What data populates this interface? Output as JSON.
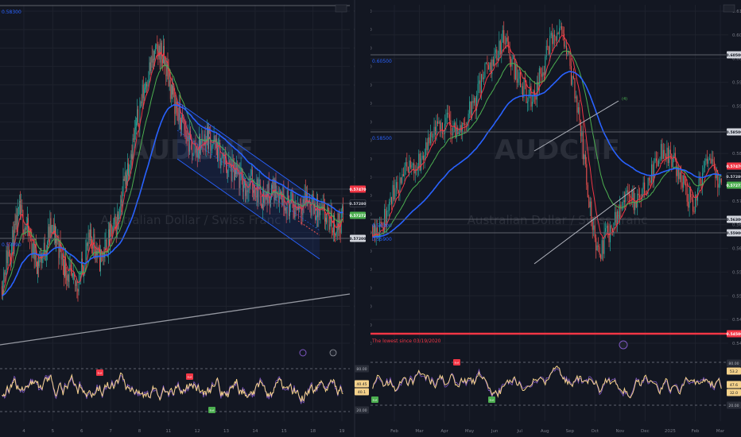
{
  "charts": [
    {
      "instrument": "AUDCHF",
      "watermark": "AUDCHF",
      "watermark_sub": "Australian Dollar / Swiss Franc",
      "top_level_label": "0.58300",
      "lower_level_label": "0.57890",
      "price_labels": [
        {
          "text": "0.57470",
          "color": "#f23645"
        },
        {
          "text": "0.57280",
          "color": "#131722"
        },
        {
          "text": "0.57272",
          "color": "#4caf50"
        },
        {
          "text": "0.57200",
          "color": "#d1d4dc"
        }
      ],
      "y_ticks": [
        "0.58400",
        "0.58300",
        "0.58200",
        "0.58100",
        "0.58000",
        "0.57900",
        "0.57800",
        "0.57700",
        "0.57600",
        "0.57500",
        "0.57400",
        "0.57300",
        "0.57200",
        "0.57100",
        "0.57000",
        "0.56900",
        "0.56800",
        "0.56700",
        "0.56600"
      ],
      "x_ticks": [
        "4",
        "5",
        "6",
        "7",
        "8",
        "11",
        "12",
        "13",
        "14",
        "15",
        "18",
        "19"
      ],
      "osc_labels": [
        "80.00",
        "40.45",
        "40.1",
        "20.00"
      ],
      "osc_markers": [
        {
          "text": "Bull",
          "color": "#f23645"
        },
        {
          "text": "Bull",
          "color": "#f23645"
        },
        {
          "text": "Bull",
          "color": "#4caf50"
        }
      ]
    },
    {
      "instrument": "AUDCHF",
      "watermark": "AUDCHF",
      "watermark_sub": "Australian Dollar / Swiss Franc",
      "level_labels": [
        "0.60500",
        "0.58500",
        "0.56300",
        "0.55900"
      ],
      "annotation": "The lowest since 03/19/2020",
      "channel_label": "(4)",
      "price_labels": [
        {
          "text": "0.60500",
          "color": "#d1d4dc"
        },
        {
          "text": "0.58500",
          "color": "#d1d4dc"
        },
        {
          "text": "0.57470",
          "color": "#f23645"
        },
        {
          "text": "0.57280",
          "color": "#131722"
        },
        {
          "text": "0.57272",
          "color": "#4caf50"
        },
        {
          "text": "0.56300",
          "color": "#d1d4dc"
        },
        {
          "text": "0.55900",
          "color": "#d1d4dc"
        },
        {
          "text": "0.54500",
          "color": "#f23645"
        }
      ],
      "y_ticks": [
        "0.61000",
        "0.60500",
        "0.60000",
        "0.59500",
        "0.59000",
        "0.58500",
        "0.58000",
        "0.57500",
        "0.57000",
        "0.56500",
        "0.56000",
        "0.55500",
        "0.55000",
        "0.54500",
        "0.54000"
      ],
      "x_ticks": [
        "Feb",
        "Mar",
        "Apr",
        "May",
        "Jun",
        "Jul",
        "Aug",
        "Sep",
        "Oct",
        "Nov",
        "Dec",
        "2025",
        "Feb",
        "Mar"
      ],
      "osc_labels": [
        "80.00",
        "53.2",
        "47.6",
        "32.0",
        "20.00"
      ],
      "osc_markers": [
        {
          "text": "Bull",
          "color": "#f23645"
        },
        {
          "text": "Bull",
          "color": "#4caf50"
        },
        {
          "text": "Bull",
          "color": "#4caf50"
        }
      ]
    }
  ],
  "colors": {
    "background": "#131722",
    "grid": "#1e222d",
    "bull": "#26a69a",
    "bear": "#ef5350",
    "ma_fast": "#f23645",
    "ma_mid": "#4caf50",
    "ma_slow": "#2962ff",
    "channel": "#2962ff",
    "oscillator": "#f5d28b"
  },
  "chart_data": [
    {
      "type": "candlestick",
      "title": "AUDCHF",
      "timeframe": "intraday",
      "x_ticks": [
        "4",
        "5",
        "6",
        "7",
        "8",
        "11",
        "12",
        "13",
        "14",
        "15",
        "18",
        "19"
      ],
      "ylim": [
        0.566,
        0.585
      ],
      "approx_closes": [
        0.5695,
        0.5712,
        0.572,
        0.5735,
        0.5728,
        0.5718,
        0.5708,
        0.5714,
        0.5726,
        0.5722,
        0.571,
        0.5702,
        0.5694,
        0.5701,
        0.5715,
        0.5722,
        0.5709,
        0.5715,
        0.5723,
        0.5731,
        0.575,
        0.5765,
        0.578,
        0.5798,
        0.5812,
        0.582,
        0.5825,
        0.5816,
        0.5801,
        0.579,
        0.5781,
        0.5772,
        0.577,
        0.5775,
        0.5778,
        0.5772,
        0.5766,
        0.5761,
        0.5757,
        0.5754,
        0.575,
        0.5752,
        0.5748,
        0.5744,
        0.5746,
        0.5749,
        0.5745,
        0.5741,
        0.5738,
        0.5741,
        0.5744,
        0.5739,
        0.5735,
        0.5733,
        0.573,
        0.5727,
        0.5734
      ]
    },
    {
      "type": "candlestick",
      "title": "AUDCHF",
      "timeframe": "daily",
      "x_ticks": [
        "Feb",
        "Mar",
        "Apr",
        "May",
        "Jun",
        "Jul",
        "Aug",
        "Sep",
        "Oct",
        "Nov",
        "Dec",
        "2025",
        "Feb",
        "Mar"
      ],
      "ylim": [
        0.54,
        0.612
      ],
      "approx_closes": [
        0.566,
        0.565,
        0.571,
        0.575,
        0.578,
        0.579,
        0.582,
        0.586,
        0.588,
        0.585,
        0.588,
        0.592,
        0.598,
        0.601,
        0.605,
        0.599,
        0.595,
        0.592,
        0.598,
        0.604,
        0.606,
        0.599,
        0.588,
        0.57,
        0.56,
        0.564,
        0.569,
        0.572,
        0.571,
        0.574,
        0.579,
        0.582,
        0.579,
        0.574,
        0.57,
        0.576,
        0.58,
        0.573
      ]
    }
  ]
}
